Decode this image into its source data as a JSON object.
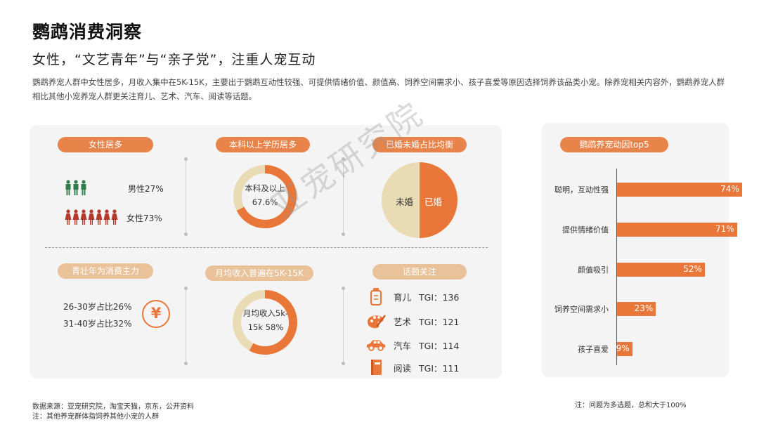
{
  "header": {
    "title": "鹦鹉消费洞察",
    "subtitle": "女性，“文艺青年”与“亲子党”，注重人宠互动",
    "intro": "鹦鹉养宠人群中女性居多，月收入集中在5K-15K，主要出于鹦鹉互动性较强、可提供情绪价值、颜值高、饲养空间需求小、孩子喜爱等原因选择饲养该品类小宠。除养宠相关内容外，鹦鹉养宠人群相比其他小宠养宠人群更关注育儿、艺术、汽车、阅读等话题。"
  },
  "colors": {
    "accent": "#e9773a",
    "light": "#e9dcb5",
    "pill_dark": "#e8834a",
    "pill_light": "#e9c29a",
    "male": "#2e7d4a",
    "female": "#b33a2a"
  },
  "gender": {
    "pill": "女性居多",
    "male_label": "男性27%",
    "female_label": "女性73%"
  },
  "education": {
    "pill": "本科以上学历居多",
    "center_line1": "本科及以上",
    "center_line2": "67.6%"
  },
  "marriage": {
    "pill": "已婚未婚占比均衡",
    "unmarried_label": "未婚",
    "married_label": "已婚"
  },
  "age": {
    "pill": "青壮年为消费主力",
    "line1": "26-30岁占比26%",
    "line2": "31-40岁占比32%",
    "icon": "yuan-icon",
    "symbol": "¥"
  },
  "income": {
    "pill": "月均收入普遍在5K-15K",
    "center_line1": "月均收入5k-",
    "center_line2": "15k 58%"
  },
  "topics": {
    "pill": "话题关注",
    "items": [
      {
        "label": "育儿",
        "tgi": "TGI：136",
        "icon": "baby-bottle-icon"
      },
      {
        "label": "艺术",
        "tgi": "TGI：121",
        "icon": "palette-icon"
      },
      {
        "label": "汽车",
        "tgi": "TGI：114",
        "icon": "car-icon"
      },
      {
        "label": "阅读",
        "tgi": "TGI：111",
        "icon": "book-icon"
      }
    ]
  },
  "chart_data": [
    {
      "type": "pie",
      "title": "女性居多",
      "categories": [
        "男性",
        "女性"
      ],
      "values": [
        27,
        73
      ],
      "display": "pictogram"
    },
    {
      "type": "pie",
      "title": "本科以上学历居多",
      "categories": [
        "本科及以上",
        "其他"
      ],
      "values": [
        67.6,
        32.4
      ],
      "display": "donut"
    },
    {
      "type": "pie",
      "title": "已婚未婚占比均衡",
      "categories": [
        "未婚",
        "已婚"
      ],
      "values": [
        50,
        50
      ]
    },
    {
      "type": "pie",
      "title": "月均收入普遍在5K-15K",
      "categories": [
        "月均收入5k-15k",
        "其他"
      ],
      "values": [
        58,
        42
      ],
      "display": "donut"
    },
    {
      "type": "bar",
      "orientation": "horizontal",
      "title": "鹦鹉养宠动因top5",
      "categories": [
        "聪明，互动性强",
        "提供情绪价值",
        "颜值吸引",
        "饲养空间需求小",
        "孩子喜爱"
      ],
      "values": [
        74,
        71,
        52,
        23,
        9
      ],
      "value_labels": [
        "74%",
        "71%",
        "52%",
        "23%",
        "9%"
      ],
      "xlim": [
        0,
        100
      ]
    }
  ],
  "footer": {
    "source": "数据来源：亚宠研究院，淘宝天猫，京东，公开资料",
    "note_left": "注：其他养宠群体指饲养其他小宠的人群",
    "note_right": "注：问题为多选题，总和大于100%"
  },
  "watermark": "亚宠研究院"
}
